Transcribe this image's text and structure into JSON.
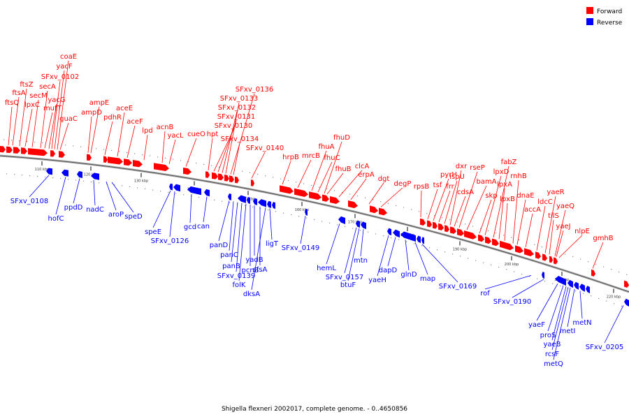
{
  "caption": "Shigella flexneri 2002017, complete genome. - 0..4650856",
  "legend": [
    {
      "label": "Forward",
      "color": "#ff0000"
    },
    {
      "label": "Reverse",
      "color": "#0000ff"
    }
  ],
  "colors": {
    "forward": "#ff0000",
    "reverse": "#0000ff",
    "backbone": "#888888"
  },
  "ticks": [
    "110 kbp",
    "120 kbp",
    "130 kbp",
    "140 kbp",
    "150 kbp",
    "160 kbp",
    "170 kbp",
    "180 kbp",
    "190 kbp",
    "200 kbp",
    "210 kbp",
    "220 kbp"
  ],
  "forward_labels": [
    "ftsQ",
    "ftsA",
    "ftsZ",
    "lpxC",
    "secM",
    "secA",
    "mutT",
    "yacG",
    "SFxv_0102",
    "yacF",
    "coaE",
    "guaC",
    "ampD",
    "ampE",
    "pdhR",
    "aceE",
    "aceF",
    "lpd",
    "acnB",
    "yacL",
    "cueO",
    "hpt",
    "SFxv_0130",
    "SFxv_0131",
    "SFxv_0132",
    "SFxv_0133",
    "SFxv_0136",
    "SFxv_0134",
    "SFxv_0140",
    "hrpB",
    "mrcB",
    "fhuA",
    "fhuD",
    "fhuC",
    "fhuB",
    "clcA",
    "erpA",
    "dgt",
    "degP",
    "rpsB",
    "tsf",
    "pyrH",
    "frr",
    "ispU",
    "dxr",
    "cdsA",
    "rseP",
    "bamA",
    "skp",
    "lpxD",
    "fabZ",
    "lpxA",
    "lpxB",
    "rnhB",
    "dnaE",
    "accA",
    "ldcC",
    "yaeR",
    "tilS",
    "yaeQ",
    "yaeJ",
    "nlpE",
    "gmhB"
  ],
  "reverse_labels": [
    "SFxv_0108",
    "hofC",
    "ppdD",
    "nadC",
    "aroP",
    "speD",
    "speE",
    "SFxv_0126",
    "gcd",
    "can",
    "panD",
    "panC",
    "panB",
    "SFxv_0139",
    "folK",
    "pcnB",
    "yadB",
    "sfsA",
    "ligT",
    "dksA",
    "SFxv_0149",
    "hemL",
    "SFxv_0157",
    "btuF",
    "mtn",
    "yaeH",
    "dapD",
    "glnD",
    "map",
    "SFxv_0169",
    "rof",
    "SFxv_0190",
    "yaeF",
    "proS",
    "yaeB",
    "rcsF",
    "metQ",
    "metI",
    "metN",
    "SFxv_0205"
  ]
}
